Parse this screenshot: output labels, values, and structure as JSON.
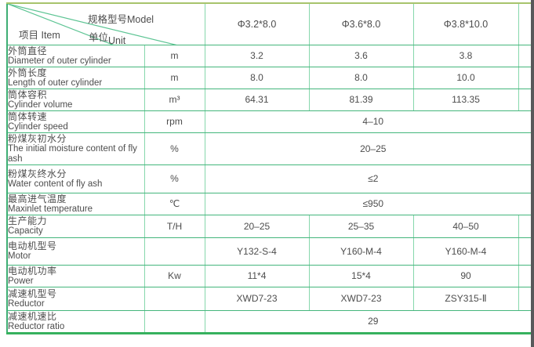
{
  "table": {
    "header": {
      "model_label": "规格型号Model",
      "item_label": "项目 Item",
      "unit_label_zh": "单位",
      "unit_label_en": "Unit",
      "columns": [
        "Φ3.2*8.0",
        "Φ3.6*8.0",
        "Φ3.8*10.0"
      ]
    },
    "rows": [
      {
        "zh": "外筒直径",
        "en": "Diameter of outer cylinder",
        "unit": "m",
        "span": false,
        "values": [
          "3.2",
          "3.6",
          "3.8"
        ]
      },
      {
        "zh": "外筒长度",
        "en": "Length of outer cylinder",
        "unit": "m",
        "span": false,
        "values": [
          "8.0",
          "8.0",
          "10.0"
        ]
      },
      {
        "zh": "筒体容积",
        "en": "Cylinder volume",
        "unit": "m³",
        "span": false,
        "values": [
          "64.31",
          "81.39",
          "113.35"
        ]
      },
      {
        "zh": "筒体转速",
        "en": "Cylinder speed",
        "unit": "rpm",
        "span": true,
        "values": [
          "4–10"
        ]
      },
      {
        "zh": "粉煤灰初水分",
        "en": "The initial moisture content of fly ash",
        "unit": "%",
        "span": true,
        "values": [
          "20–25"
        ]
      },
      {
        "zh": "粉煤灰终水分",
        "en": "Water content of fly ash",
        "unit": "%",
        "span": true,
        "values": [
          "≤2"
        ]
      },
      {
        "zh": "最高进气温度",
        "en": "Maxinlet temperature",
        "unit": "℃",
        "span": true,
        "values": [
          "≤950"
        ]
      },
      {
        "zh": "生产能力",
        "en": "Capacity",
        "unit": "T/H",
        "span": false,
        "values": [
          "20–25",
          "25–35",
          "40–50"
        ]
      },
      {
        "zh": "电动机型号",
        "en": "Motor",
        "unit": "",
        "span": false,
        "values": [
          "Y132-S-4",
          "Y160-M-4",
          "Y160-M-4"
        ]
      },
      {
        "zh": "电动机功率",
        "en": "Power",
        "unit": "Kw",
        "span": false,
        "values": [
          "11*4",
          "15*4",
          "90"
        ]
      },
      {
        "zh": "减速机型号",
        "en": "Reductor",
        "unit": "",
        "span": false,
        "values": [
          "XWD7-23",
          "XWD7-23",
          "ZSY315-Ⅱ"
        ]
      },
      {
        "zh": "减速机速比",
        "en": "Reductor ratio",
        "unit": "",
        "span": true,
        "values": [
          "29"
        ]
      }
    ],
    "colors": {
      "grid_green": "#44b67c",
      "grid_light_green": "#86d7ac",
      "outer_border": "#3fae74",
      "top_border_olive": "#a7c46c",
      "text": "#4d4d4d"
    }
  }
}
